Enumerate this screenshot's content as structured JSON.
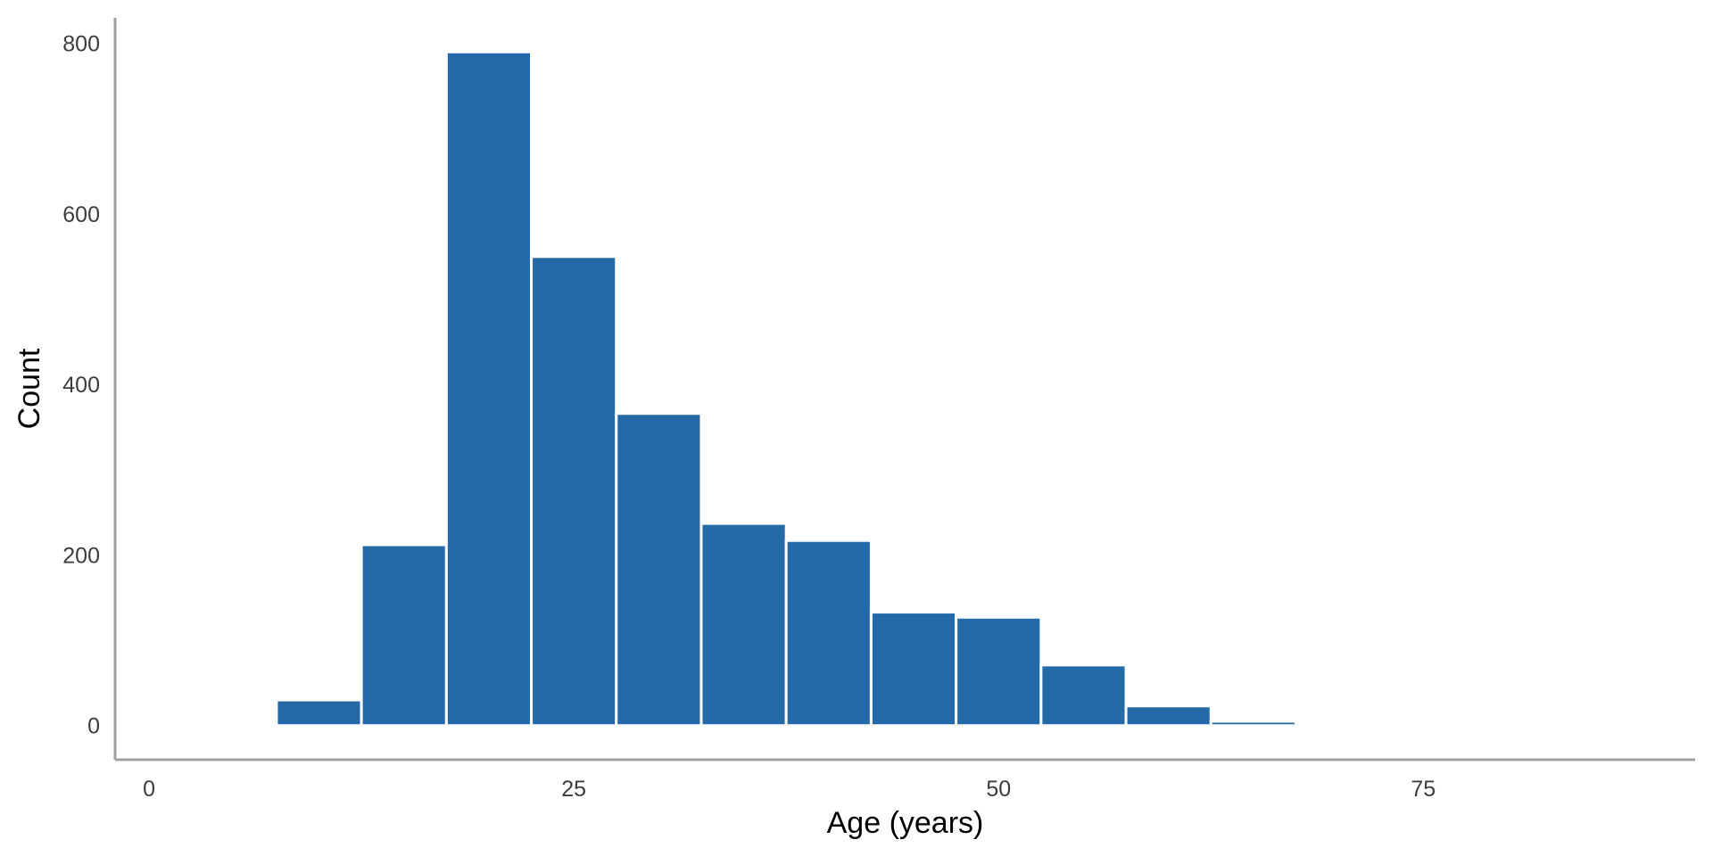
{
  "chart_data": {
    "type": "bar",
    "subtype": "histogram",
    "title": "",
    "xlabel": "Age (years)",
    "ylabel": "Count",
    "xlim": [
      -2,
      91
    ],
    "ylim": [
      -40,
      830
    ],
    "x_ticks": [
      0,
      25,
      50,
      75
    ],
    "y_ticks": [
      0,
      200,
      400,
      600,
      800
    ],
    "bin_width": 5,
    "bins": [
      {
        "start": 7.5,
        "end": 12.5,
        "count": 30
      },
      {
        "start": 12.5,
        "end": 17.5,
        "count": 212
      },
      {
        "start": 17.5,
        "end": 22.5,
        "count": 790
      },
      {
        "start": 22.5,
        "end": 27.5,
        "count": 550
      },
      {
        "start": 27.5,
        "end": 32.5,
        "count": 366
      },
      {
        "start": 32.5,
        "end": 37.5,
        "count": 237
      },
      {
        "start": 37.5,
        "end": 42.5,
        "count": 217
      },
      {
        "start": 42.5,
        "end": 47.5,
        "count": 133
      },
      {
        "start": 47.5,
        "end": 52.5,
        "count": 127
      },
      {
        "start": 52.5,
        "end": 57.5,
        "count": 71
      },
      {
        "start": 57.5,
        "end": 62.5,
        "count": 23
      },
      {
        "start": 62.5,
        "end": 67.5,
        "count": 5
      }
    ],
    "grid": false,
    "legend": "none",
    "colors": {
      "bar_fill": "#246aa8",
      "bar_stroke": "#ffffff",
      "axis": "#a0a0a0"
    }
  }
}
